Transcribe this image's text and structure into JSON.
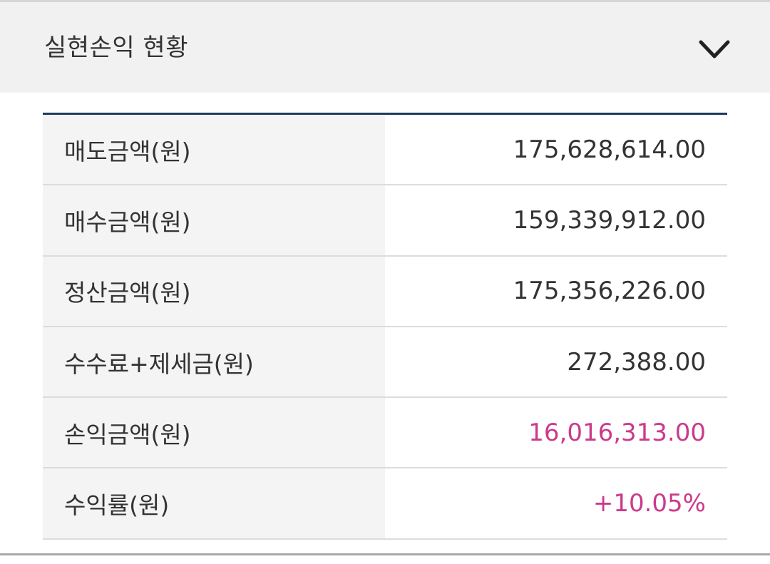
{
  "header": {
    "title": "실현손익 현황",
    "toggle_icon": "chevron-down-icon"
  },
  "rows": [
    {
      "label": "매도금액(원)",
      "value": "175,628,614.00"
    },
    {
      "label": "매수금액(원)",
      "value": "159,339,912.00"
    },
    {
      "label": "정산금액(원)",
      "value": "175,356,226.00"
    },
    {
      "label": "수수료+제세금(원)",
      "value": "272,388.00"
    },
    {
      "label": "손익금액(원)",
      "value": "16,016,313.00"
    },
    {
      "label": "수익률(원)",
      "value": "+10.05%"
    }
  ],
  "colors": {
    "header_bg": "#f1f1f1",
    "table_top_border": "#1f3a5c",
    "label_bg": "#f4f4f4",
    "profit": "#cc3a8a",
    "text": "#333333"
  }
}
